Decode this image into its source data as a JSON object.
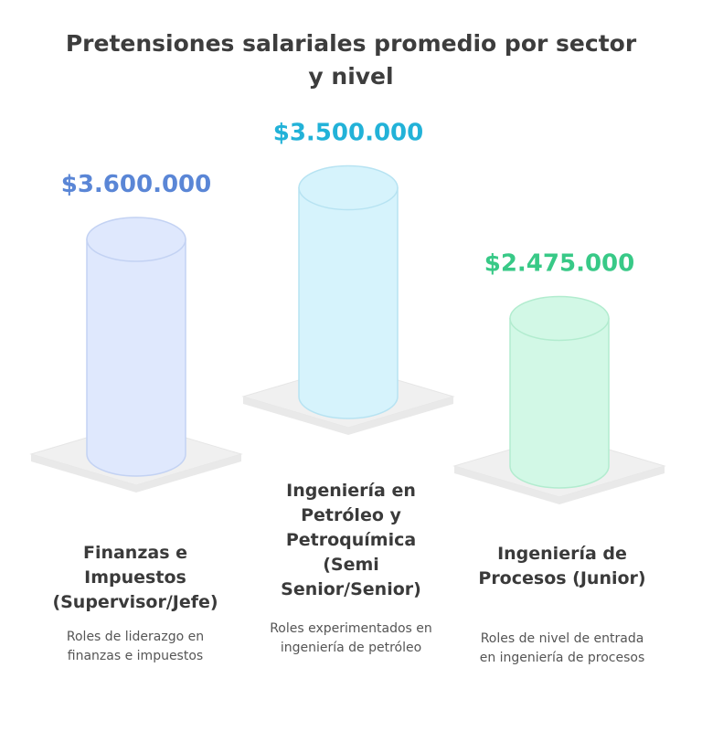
{
  "chart_data": {
    "type": "bar",
    "title": "Pretensiones salariales promedio por sector y nivel",
    "categories": [
      "Finanzas e Impuestos (Supervisor/Jefe)",
      "Ingeniería en Petróleo y Petroquímica (Semi Senior/Senior)",
      "Ingeniería de Procesos (Junior)"
    ],
    "values": [
      3600000,
      3500000,
      2475000
    ],
    "value_labels": [
      "$3.600.000",
      "$3.500.000",
      "$2.475.000"
    ],
    "descriptions": [
      "Roles de liderazgo en finanzas e impuestos",
      "Roles experimentados en ingeniería de petróleo",
      "Roles de nivel de entrada en ingeniería de procesos"
    ],
    "colors": {
      "bar_fills": [
        "#dfe8fd",
        "#d6f3fc",
        "#d2f8e6"
      ],
      "bar_strokes": [
        "#c3d2f3",
        "#b7e3f2",
        "#b2eccf"
      ],
      "label_colors": [
        "#5a86d6",
        "#22b2d8",
        "#38c987"
      ],
      "platform": "#f0f0f0"
    }
  }
}
